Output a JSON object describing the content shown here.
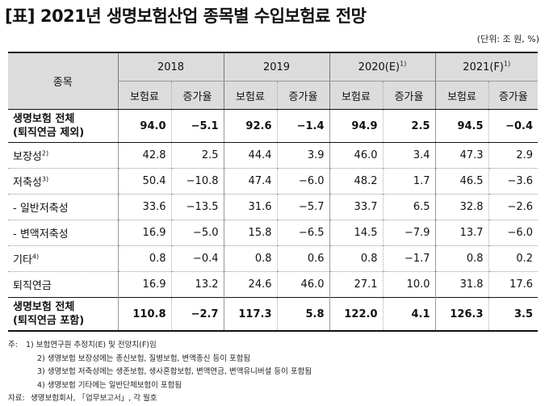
{
  "title": "[표] 2021년 생명보험산업 종목별 수입보험료 전망",
  "unit": "(단위: 조 원, %)",
  "header": {
    "category": "종목",
    "years": [
      {
        "label": "2018",
        "sup": ""
      },
      {
        "label": "2019",
        "sup": ""
      },
      {
        "label": "2020(E)",
        "sup": "1)"
      },
      {
        "label": "2021(F)",
        "sup": "1)"
      }
    ],
    "premium": "보험료",
    "growth": "증가율"
  },
  "rows": [
    {
      "line1": "생명보험 전체",
      "line2": "(퇴직연금 제외)",
      "sup": "",
      "values": [
        "94.0",
        "−5.1",
        "92.6",
        "−1.4",
        "94.9",
        "2.5",
        "94.5",
        "−0.4"
      ]
    },
    {
      "line1": "보장성",
      "line2": "",
      "sup": "2)",
      "values": [
        "42.8",
        "2.5",
        "44.4",
        "3.9",
        "46.0",
        "3.4",
        "47.3",
        "2.9"
      ]
    },
    {
      "line1": "저축성",
      "line2": "",
      "sup": "3)",
      "values": [
        "50.4",
        "−10.8",
        "47.4",
        "−6.0",
        "48.2",
        "1.7",
        "46.5",
        "−3.6"
      ]
    },
    {
      "line1": " - 일반저축성",
      "line2": "",
      "sup": "",
      "values": [
        "33.6",
        "−13.5",
        "31.6",
        "−5.7",
        "33.7",
        "6.5",
        "32.8",
        "−2.6"
      ]
    },
    {
      "line1": " - 변액저축성",
      "line2": "",
      "sup": "",
      "values": [
        "16.9",
        "−5.0",
        "15.8",
        "−6.5",
        "14.5",
        "−7.9",
        "13.7",
        "−6.0"
      ]
    },
    {
      "line1": "기타",
      "line2": "",
      "sup": "4)",
      "values": [
        "0.8",
        "−0.4",
        "0.8",
        "0.6",
        "0.8",
        "−1.7",
        "0.8",
        "0.2"
      ]
    },
    {
      "line1": "퇴직연금",
      "line2": "",
      "sup": "",
      "values": [
        "16.9",
        "13.2",
        "24.6",
        "46.0",
        "27.1",
        "10.0",
        "31.8",
        "17.6"
      ]
    },
    {
      "line1": "생명보험 전체",
      "line2": "(퇴직연금 포함)",
      "sup": "",
      "values": [
        "110.8",
        "−2.7",
        "117.3",
        "5.8",
        "122.0",
        "4.1",
        "126.3",
        "3.5"
      ]
    }
  ],
  "notes": {
    "head": "주:",
    "items": [
      "1) 보험연구원 추정치(E) 및 전망치(F)임",
      "2) 생명보험 보장성에는 종신보험, 질병보험, 변액종신 등이 포함됨",
      "3) 생명보험 저축성에는 생존보험, 생사혼합보험, 변액연금, 변액유니버셜 등이 포함됨",
      "4) 생명보험 기타에는 일반단체보험이 포함됨"
    ],
    "source_head": "자료:",
    "source": "생명보험회사, 「업무보고서」, 각 월호"
  }
}
